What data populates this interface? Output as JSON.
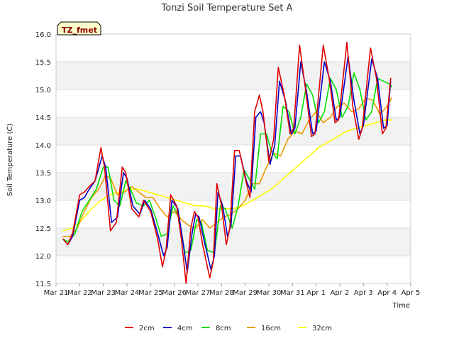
{
  "chart_data": {
    "type": "line",
    "title": "Tonzi Soil Temperature Set A",
    "xlabel": "Time",
    "ylabel": "Soil Temperature (C)",
    "site_label": "TZ_fmet",
    "xlim": [
      0,
      15
    ],
    "ylim": [
      11.5,
      16.0
    ],
    "x_tick_labels": [
      "Mar 21",
      "Mar 22",
      "Mar 23",
      "Mar 24",
      "Mar 25",
      "Mar 26",
      "Mar 27",
      "Mar 28",
      "Mar 29",
      "Mar 30",
      "Mar 31",
      "Apr 1",
      "Apr 2",
      "Apr 3",
      "Apr 4",
      "Apr 5"
    ],
    "y_tick_labels": [
      "11.5",
      "12.0",
      "12.5",
      "13.0",
      "13.5",
      "14.0",
      "14.5",
      "15.0",
      "15.5",
      "16.0"
    ],
    "legend_position": "bottom-center",
    "series": [
      {
        "name": "2cm",
        "color": "#e00000",
        "x": [
          0.3,
          0.5,
          0.7,
          1.0,
          1.2,
          1.4,
          1.65,
          1.9,
          2.05,
          2.3,
          2.55,
          2.8,
          2.95,
          3.2,
          3.5,
          3.7,
          4.0,
          4.3,
          4.5,
          4.65,
          4.85,
          5.1,
          5.3,
          5.5,
          5.7,
          5.85,
          6.0,
          6.2,
          6.5,
          6.65,
          6.8,
          7.0,
          7.2,
          7.35,
          7.55,
          7.75,
          8.0,
          8.2,
          8.4,
          8.6,
          8.75,
          9.0,
          9.2,
          9.4,
          9.65,
          9.9,
          10.05,
          10.3,
          10.55,
          10.8,
          10.95,
          11.3,
          11.55,
          11.8,
          11.95,
          12.3,
          12.55,
          12.8,
          12.95,
          13.3,
          13.55,
          13.8,
          13.95,
          14.15
        ],
        "y": [
          12.3,
          12.2,
          12.4,
          13.1,
          13.15,
          13.25,
          13.35,
          13.95,
          13.6,
          12.45,
          12.6,
          13.6,
          13.5,
          12.85,
          12.7,
          13.0,
          12.8,
          12.3,
          11.8,
          12.1,
          13.1,
          12.9,
          12.3,
          11.5,
          12.5,
          12.8,
          12.7,
          12.2,
          11.6,
          11.9,
          13.3,
          12.9,
          12.2,
          12.5,
          13.9,
          13.9,
          13.4,
          13.05,
          14.6,
          14.9,
          14.6,
          13.7,
          14.1,
          15.4,
          14.9,
          14.2,
          14.3,
          15.8,
          15.0,
          14.15,
          14.2,
          15.8,
          15.2,
          14.4,
          14.45,
          15.85,
          14.7,
          14.1,
          14.3,
          15.75,
          15.2,
          14.2,
          14.3,
          15.2
        ]
      },
      {
        "name": "4cm",
        "color": "#0000cc",
        "x": [
          0.3,
          0.5,
          0.7,
          1.0,
          1.2,
          1.4,
          1.65,
          1.95,
          2.1,
          2.35,
          2.6,
          2.85,
          3.0,
          3.25,
          3.55,
          3.75,
          4.0,
          4.3,
          4.55,
          4.7,
          4.9,
          5.15,
          5.35,
          5.55,
          5.75,
          5.9,
          6.05,
          6.25,
          6.55,
          6.7,
          6.85,
          7.05,
          7.25,
          7.4,
          7.6,
          7.8,
          8.05,
          8.25,
          8.45,
          8.65,
          8.8,
          9.05,
          9.25,
          9.45,
          9.7,
          9.95,
          10.1,
          10.35,
          10.6,
          10.85,
          11.0,
          11.35,
          11.6,
          11.85,
          12.0,
          12.35,
          12.6,
          12.85,
          13.0,
          13.35,
          13.6,
          13.85,
          14.0,
          14.15
        ],
        "y": [
          12.3,
          12.2,
          12.35,
          13.0,
          13.05,
          13.2,
          13.35,
          13.8,
          13.6,
          12.6,
          12.7,
          13.5,
          13.4,
          12.9,
          12.75,
          13.0,
          12.85,
          12.4,
          12.0,
          12.15,
          13.0,
          12.85,
          12.3,
          11.7,
          12.4,
          12.75,
          12.7,
          12.3,
          11.75,
          12.0,
          13.15,
          12.9,
          12.35,
          12.55,
          13.8,
          13.8,
          13.35,
          13.15,
          14.5,
          14.6,
          14.4,
          13.65,
          14.0,
          15.15,
          14.8,
          14.2,
          14.3,
          15.5,
          14.95,
          14.2,
          14.25,
          15.5,
          15.15,
          14.45,
          14.5,
          15.6,
          14.8,
          14.2,
          14.35,
          15.55,
          15.2,
          14.3,
          14.35,
          15.15
        ]
      },
      {
        "name": "8cm",
        "color": "#00e000",
        "x": [
          0.3,
          0.5,
          0.8,
          1.1,
          1.4,
          1.7,
          2.0,
          2.2,
          2.45,
          2.7,
          2.95,
          3.15,
          3.4,
          3.7,
          3.95,
          4.2,
          4.45,
          4.7,
          4.95,
          5.2,
          5.45,
          5.7,
          5.95,
          6.15,
          6.4,
          6.7,
          6.95,
          7.15,
          7.45,
          7.7,
          7.95,
          8.15,
          8.4,
          8.65,
          8.9,
          9.1,
          9.35,
          9.6,
          9.85,
          10.1,
          10.35,
          10.6,
          10.85,
          11.1,
          11.35,
          11.6,
          11.85,
          12.1,
          12.35,
          12.6,
          12.85,
          13.1,
          13.35,
          13.6,
          13.85,
          14.1,
          14.2
        ],
        "y": [
          12.3,
          12.25,
          12.4,
          12.8,
          13.0,
          13.2,
          13.6,
          13.6,
          13.0,
          12.9,
          13.35,
          13.2,
          12.95,
          12.9,
          13.0,
          12.7,
          12.35,
          12.4,
          12.9,
          12.7,
          12.05,
          12.1,
          12.65,
          12.6,
          12.1,
          12.05,
          12.9,
          12.85,
          12.5,
          12.9,
          13.55,
          13.4,
          13.2,
          14.2,
          14.2,
          13.9,
          13.75,
          14.7,
          14.6,
          14.2,
          14.5,
          15.1,
          14.9,
          14.4,
          14.6,
          15.2,
          15.0,
          14.5,
          14.7,
          15.3,
          15.0,
          14.45,
          14.6,
          15.2,
          15.15,
          15.1,
          15.05
        ]
      },
      {
        "name": "16cm",
        "color": "#ee9900",
        "x": [
          0.3,
          0.6,
          0.9,
          1.2,
          1.5,
          1.8,
          2.1,
          2.3,
          2.6,
          2.9,
          3.2,
          3.5,
          3.8,
          4.1,
          4.4,
          4.7,
          5.0,
          5.3,
          5.6,
          5.9,
          6.2,
          6.5,
          6.8,
          7.1,
          7.4,
          7.7,
          8.0,
          8.3,
          8.6,
          8.9,
          9.2,
          9.5,
          9.8,
          10.1,
          10.4,
          10.7,
          11.0,
          11.3,
          11.6,
          11.9,
          12.2,
          12.5,
          12.8,
          13.1,
          13.4,
          13.7,
          14.0,
          14.2
        ],
        "y": [
          12.35,
          12.35,
          12.5,
          12.8,
          13.05,
          13.2,
          13.45,
          13.4,
          13.1,
          13.15,
          13.25,
          13.15,
          13.05,
          13.05,
          12.85,
          12.7,
          12.8,
          12.65,
          12.55,
          12.5,
          12.65,
          12.5,
          12.6,
          12.7,
          12.75,
          12.85,
          13.0,
          13.3,
          13.3,
          13.6,
          13.85,
          13.8,
          14.1,
          14.25,
          14.2,
          14.45,
          14.6,
          14.4,
          14.5,
          14.7,
          14.75,
          14.6,
          14.65,
          14.85,
          14.8,
          14.55,
          14.7,
          14.85
        ]
      },
      {
        "name": "32cm",
        "color": "#ffff00",
        "x": [
          0.3,
          0.7,
          1.1,
          1.5,
          1.9,
          2.3,
          2.7,
          3.1,
          3.5,
          3.9,
          4.3,
          4.7,
          5.1,
          5.5,
          5.9,
          6.3,
          6.7,
          7.1,
          7.5,
          7.9,
          8.3,
          8.7,
          9.1,
          9.5,
          9.9,
          10.3,
          10.7,
          11.1,
          11.5,
          11.9,
          12.3,
          12.7,
          13.1,
          13.5,
          13.9,
          14.2
        ],
        "y": [
          12.45,
          12.5,
          12.65,
          12.85,
          13.0,
          13.1,
          13.15,
          13.2,
          13.2,
          13.15,
          13.1,
          13.05,
          13.0,
          12.95,
          12.9,
          12.9,
          12.85,
          12.85,
          12.85,
          12.9,
          13.0,
          13.1,
          13.2,
          13.35,
          13.5,
          13.65,
          13.8,
          13.95,
          14.05,
          14.15,
          14.25,
          14.3,
          14.35,
          14.4,
          14.45,
          14.45
        ]
      }
    ]
  }
}
